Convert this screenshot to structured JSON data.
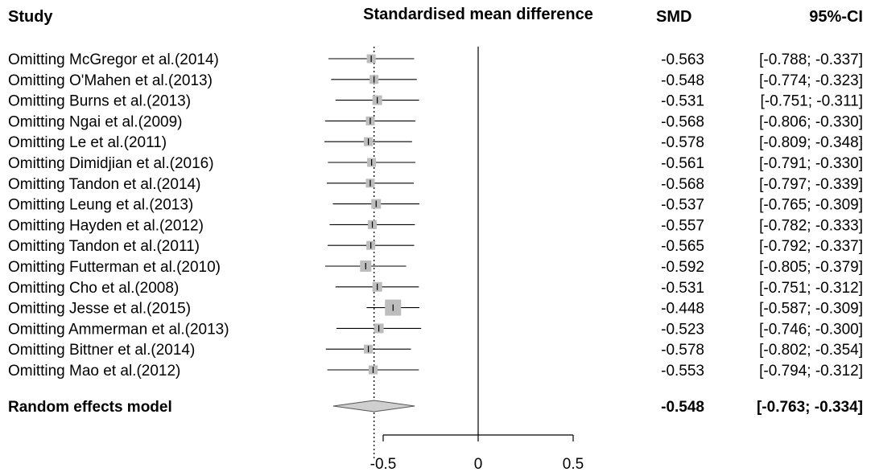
{
  "headers": {
    "study": "Study",
    "effect": "Standardised mean difference",
    "smd": "SMD",
    "ci": "95%-CI"
  },
  "chart_data": {
    "type": "forest",
    "xlim": [
      -0.7,
      0.55
    ],
    "xticks": [
      {
        "value": -0.5,
        "label": "-0.5"
      },
      {
        "value": 0,
        "label": "0"
      },
      {
        "value": 0.5,
        "label": "0.5"
      }
    ],
    "null_line": 0,
    "pooled_line": -0.548,
    "studies": [
      {
        "label": "Omitting McGregor et al.(2014)",
        "smd": -0.563,
        "lower": -0.788,
        "upper": -0.337,
        "smd_text": "-0.563",
        "ci_text": "[-0.788; -0.337]"
      },
      {
        "label": "Omitting O'Mahen et al.(2013)",
        "smd": -0.548,
        "lower": -0.774,
        "upper": -0.323,
        "smd_text": "-0.548",
        "ci_text": "[-0.774; -0.323]"
      },
      {
        "label": "Omitting Burns et al.(2013)",
        "smd": -0.531,
        "lower": -0.751,
        "upper": -0.311,
        "smd_text": "-0.531",
        "ci_text": "[-0.751; -0.311]"
      },
      {
        "label": "Omitting Ngai et al.(2009)",
        "smd": -0.568,
        "lower": -0.806,
        "upper": -0.33,
        "smd_text": "-0.568",
        "ci_text": "[-0.806; -0.330]"
      },
      {
        "label": "Omitting Le et al.(2011)",
        "smd": -0.578,
        "lower": -0.809,
        "upper": -0.348,
        "smd_text": "-0.578",
        "ci_text": "[-0.809; -0.348]"
      },
      {
        "label": "Omitting Dimidjian et al.(2016)",
        "smd": -0.561,
        "lower": -0.791,
        "upper": -0.33,
        "smd_text": "-0.561",
        "ci_text": "[-0.791; -0.330]"
      },
      {
        "label": "Omitting Tandon et al.(2014)",
        "smd": -0.568,
        "lower": -0.797,
        "upper": -0.339,
        "smd_text": "-0.568",
        "ci_text": "[-0.797; -0.339]"
      },
      {
        "label": "Omitting Leung et al.(2013)",
        "smd": -0.537,
        "lower": -0.765,
        "upper": -0.309,
        "smd_text": "-0.537",
        "ci_text": "[-0.765; -0.309]"
      },
      {
        "label": "Omitting Hayden et al.(2012)",
        "smd": -0.557,
        "lower": -0.782,
        "upper": -0.333,
        "smd_text": "-0.557",
        "ci_text": "[-0.782; -0.333]"
      },
      {
        "label": "Omitting Tandon et al.(2011)",
        "smd": -0.565,
        "lower": -0.792,
        "upper": -0.337,
        "smd_text": "-0.565",
        "ci_text": "[-0.792; -0.337]"
      },
      {
        "label": "Omitting Futterman et al.(2010)",
        "smd": -0.592,
        "lower": -0.805,
        "upper": -0.379,
        "smd_text": "-0.592",
        "ci_text": "[-0.805; -0.379]"
      },
      {
        "label": "Omitting Cho et al.(2008)",
        "smd": -0.531,
        "lower": -0.751,
        "upper": -0.312,
        "smd_text": "-0.531",
        "ci_text": "[-0.751; -0.312]"
      },
      {
        "label": "Omitting Jesse et al.(2015)",
        "smd": -0.448,
        "lower": -0.587,
        "upper": -0.309,
        "smd_text": "-0.448",
        "ci_text": "[-0.587; -0.309]"
      },
      {
        "label": "Omitting Ammerman et al.(2013)",
        "smd": -0.523,
        "lower": -0.746,
        "upper": -0.3,
        "smd_text": "-0.523",
        "ci_text": "[-0.746; -0.300]"
      },
      {
        "label": "Omitting Bittner et al.(2014)",
        "smd": -0.578,
        "lower": -0.802,
        "upper": -0.354,
        "smd_text": "-0.578",
        "ci_text": "[-0.802; -0.354]"
      },
      {
        "label": "Omitting Mao et al.(2012)",
        "smd": -0.553,
        "lower": -0.794,
        "upper": -0.312,
        "smd_text": "-0.553",
        "ci_text": "[-0.794; -0.312]"
      }
    ],
    "summary": {
      "label": "Random effects model",
      "smd": -0.548,
      "lower": -0.763,
      "upper": -0.334,
      "smd_text": "-0.548",
      "ci_text": "[-0.763; -0.334]"
    },
    "colors": {
      "box": "#bdbdbd",
      "line": "#000000",
      "diamond_fill": "#cfcfcf",
      "text": "#000000"
    }
  }
}
